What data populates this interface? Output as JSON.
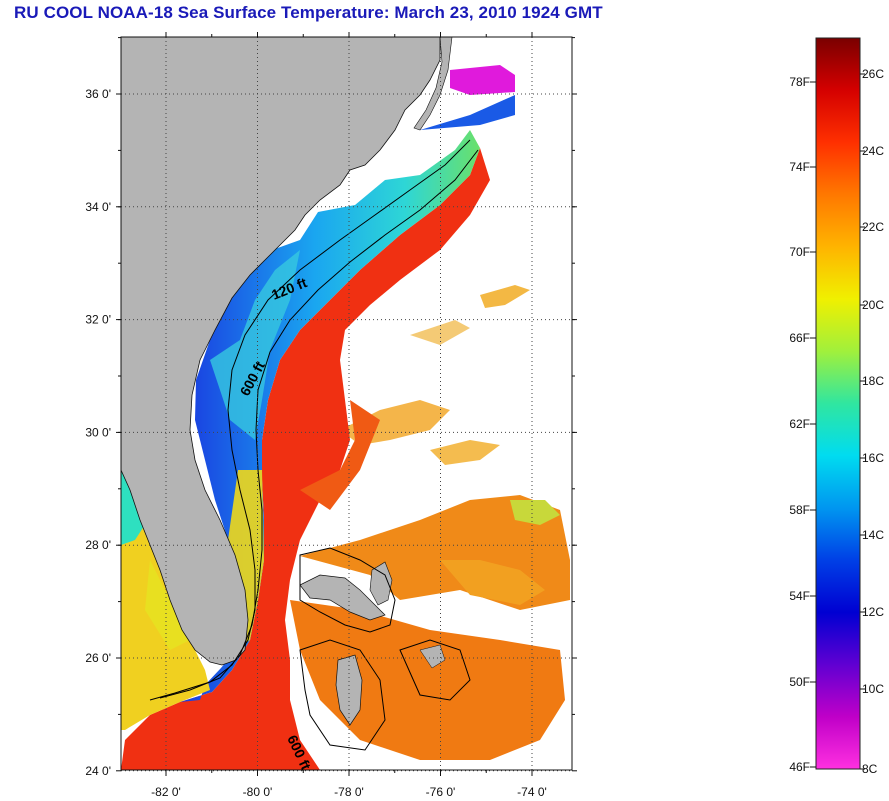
{
  "title": "RU COOL  NOAA-18  Sea Surface Temperature:  March 23, 2010 1924 GMT",
  "map": {
    "lat_ticks": [
      {
        "label": "36 0'",
        "value": 36
      },
      {
        "label": "34 0'",
        "value": 34
      },
      {
        "label": "32 0'",
        "value": 32
      },
      {
        "label": "30 0'",
        "value": 30
      },
      {
        "label": "28 0'",
        "value": 28
      },
      {
        "label": "26 0'",
        "value": 26
      },
      {
        "label": "24 0'",
        "value": 24
      }
    ],
    "lon_ticks": [
      {
        "label": "-82 0'",
        "value": -82
      },
      {
        "label": "-80 0'",
        "value": -80
      },
      {
        "label": "-78 0'",
        "value": -78
      },
      {
        "label": "-76 0'",
        "value": -76
      },
      {
        "label": "-74 0'",
        "value": -74
      }
    ],
    "contour_labels": [
      {
        "id": "120ft",
        "text": "120 ft"
      },
      {
        "id": "600ft-north",
        "text": "600 ft"
      },
      {
        "id": "600ft-south",
        "text": "600 ft"
      }
    ],
    "colors": {
      "land": "#b4b4b4",
      "no_data": "#ffffff",
      "warm": "#e8120e",
      "gulf_stream": "#f03a10",
      "orange": "#f0820e",
      "yellow": "#f2e51a",
      "green": "#62e06a",
      "cyan": "#1ad6e6",
      "blue": "#1a6ae6",
      "deep_blue": "#1a2ad6",
      "magenta": "#e61ad6"
    }
  },
  "colorbar": {
    "fahrenheit": [
      "78F",
      "74F",
      "70F",
      "66F",
      "62F",
      "58F",
      "54F",
      "50F",
      "46F"
    ],
    "celsius": [
      "26C",
      "24C",
      "22C",
      "20C",
      "18C",
      "16C",
      "14C",
      "12C",
      "10C",
      "8C"
    ],
    "stops": [
      "#7a0000",
      "#d40000",
      "#ff3000",
      "#ff7800",
      "#ffb400",
      "#f0f000",
      "#a0f03c",
      "#30e6a0",
      "#00dcf0",
      "#0096f0",
      "#0040e6",
      "#0000d2",
      "#6000d2",
      "#c000c8",
      "#ff30e0"
    ]
  }
}
